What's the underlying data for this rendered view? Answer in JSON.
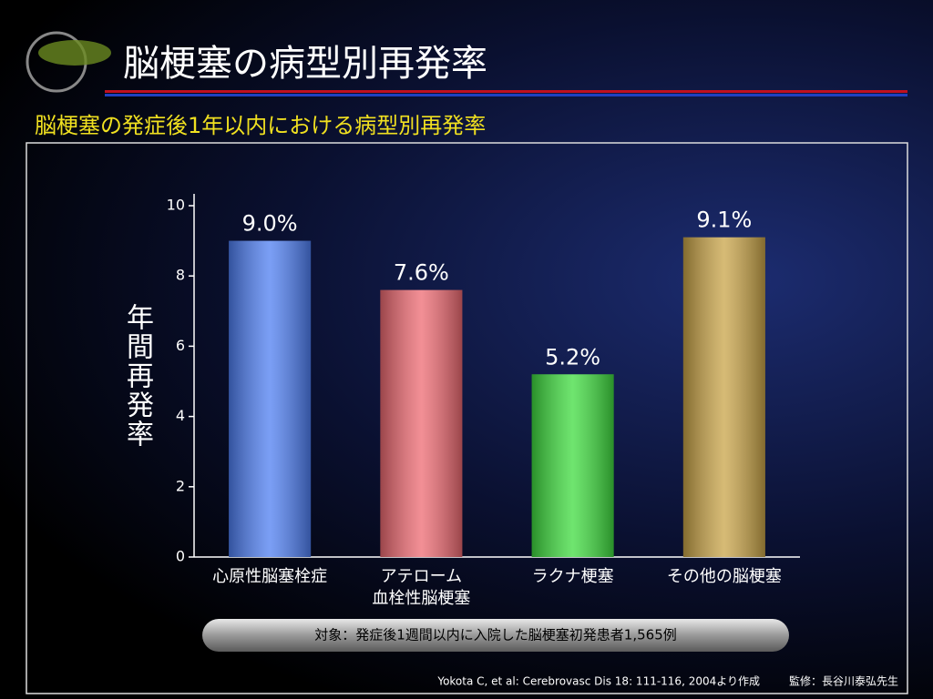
{
  "chart_data": {
    "type": "bar",
    "title": "脳梗塞の病型別再発率",
    "subtitle": "脳梗塞の発症後1年以内における病型別再発率",
    "y_label": "年間再発率",
    "categories": [
      "心原性脳塞栓症",
      "アテローム\n血栓性脳梗塞",
      "ラクナ梗塞",
      "その他の脳梗塞"
    ],
    "values": [
      9.0,
      7.6,
      5.2,
      9.1
    ],
    "value_labels": [
      "9.0%",
      "7.6%",
      "5.2%",
      "9.1%"
    ],
    "colors": [
      "#4f7ff2",
      "#ee6a72",
      "#3fdc3f",
      "#c9a448"
    ],
    "ylim": [
      0,
      10
    ],
    "yticks": [
      0,
      2,
      4,
      6,
      8,
      10
    ],
    "note": "対象：発症後1週間以内に入院した脳梗塞初発患者1,565例",
    "source": "Yokota C, et al: Cerebrovasc Dis 18: 111-116, 2004より作成",
    "supervisor": "監修：長谷川泰弘先生"
  }
}
